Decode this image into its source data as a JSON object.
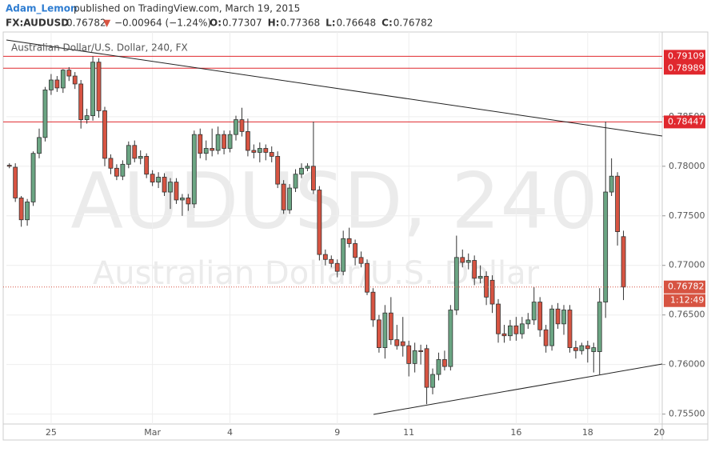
{
  "header": {
    "author": "Adam_Lemon",
    "published": "published on TradingView.com, March 19, 2015",
    "symbol": "FX:AUDUSD",
    "last": "0.76782",
    "arrow": "▼",
    "change": "−0.00964 (−1.24%)",
    "ohlc": [
      {
        "label": "O:",
        "value": "0.77307"
      },
      {
        "label": "H:",
        "value": "0.77368"
      },
      {
        "label": "L:",
        "value": "0.76648"
      },
      {
        "label": "C:",
        "value": "0.76782"
      }
    ]
  },
  "chart_data": {
    "type": "candlestick",
    "title": "Australian Dollar/U.S. Dollar, 240, FX",
    "watermark": [
      "AUDUSD, 240",
      "Australian Dollar/U.S. Dollar"
    ],
    "up_color": "#6ba583",
    "down_color": "#d75442",
    "grid": true,
    "categories": [
      null,
      null,
      null,
      null,
      null,
      null,
      null,
      "25",
      null,
      null,
      null,
      null,
      null,
      null,
      null,
      null,
      null,
      null,
      null,
      null,
      null,
      null,
      null,
      null,
      "Mar",
      null,
      null,
      null,
      null,
      null,
      null,
      null,
      null,
      null,
      null,
      null,
      null,
      "4",
      null,
      null,
      null,
      null,
      null,
      null,
      null,
      null,
      null,
      null,
      null,
      null,
      null,
      null,
      null,
      null,
      null,
      "9",
      null,
      null,
      null,
      null,
      null,
      null,
      null,
      null,
      null,
      null,
      null,
      "11",
      null,
      null,
      null,
      null,
      null,
      null,
      null,
      null,
      null,
      null,
      null,
      null,
      null,
      null,
      null,
      null,
      null,
      "16",
      null,
      null,
      null,
      null,
      null,
      null,
      null,
      null,
      null,
      null,
      null,
      "18",
      null,
      null,
      null,
      null,
      null,
      null,
      null,
      null,
      null,
      null,
      null,
      "20"
    ],
    "open": [
      0.7801,
      0.7799,
      0.7768,
      0.7746,
      0.7764,
      0.7813,
      0.7829,
      0.7877,
      0.7887,
      0.7879,
      0.7897,
      0.7891,
      0.7883,
      0.7847,
      0.7851,
      0.7905,
      0.7856,
      0.7808,
      0.7798,
      0.779,
      0.7802,
      0.7821,
      0.7808,
      0.781,
      0.7792,
      0.7784,
      0.7789,
      0.7774,
      0.7784,
      0.7766,
      0.7768,
      0.7762,
      0.7832,
      0.7813,
      0.7818,
      0.7816,
      0.7832,
      0.7818,
      0.7832,
      0.7847,
      0.7835,
      0.7816,
      0.7814,
      0.7818,
      0.7814,
      0.781,
      0.7782,
      0.7756,
      0.7778,
      0.7792,
      0.7798,
      0.78,
      0.7776,
      0.7711,
      0.7706,
      0.7702,
      0.7694,
      0.7727,
      0.7722,
      0.7708,
      0.7702,
      0.7673,
      0.7645,
      0.7617,
      0.7652,
      0.7625,
      0.7623,
      0.7619,
      0.7601,
      0.7614,
      0.7616,
      0.7577,
      0.759,
      0.7605,
      0.7598,
      0.7655,
      0.7708,
      0.7703,
      0.7705,
      0.7687,
      0.7689,
      0.7685,
      0.7661,
      0.7631,
      0.7629,
      0.7639,
      0.7631,
      0.7641,
      0.7645,
      0.7663,
      0.7635,
      0.7619,
      0.7656,
      0.7641,
      0.7655,
      0.7617,
      0.7614,
      0.7619,
      0.7613,
      0.7613,
      0.7663,
      0.7774,
      0.779,
      0.7729,
      null,
      null,
      null,
      null,
      null,
      null
    ],
    "high": [
      0.7803,
      0.7803,
      0.777,
      0.7767,
      0.7815,
      0.7838,
      0.788,
      0.7893,
      0.7891,
      0.7898,
      0.79,
      0.7895,
      0.7887,
      0.7858,
      0.7911,
      0.7909,
      0.786,
      0.7812,
      0.7802,
      0.7806,
      0.7825,
      0.7826,
      0.7816,
      0.7813,
      0.7796,
      0.7794,
      0.7793,
      0.7788,
      0.7788,
      0.7772,
      0.7772,
      0.7836,
      0.7838,
      0.7826,
      0.7838,
      0.784,
      0.7836,
      0.7836,
      0.7851,
      0.7859,
      0.7848,
      0.7822,
      0.7824,
      0.7822,
      0.782,
      0.7815,
      0.7786,
      0.7782,
      0.7797,
      0.7803,
      0.7803,
      0.7845,
      0.778,
      0.7716,
      0.771,
      0.7706,
      0.7735,
      0.7738,
      0.7726,
      0.7714,
      0.7706,
      0.7677,
      0.765,
      0.766,
      0.7668,
      0.764,
      0.7648,
      0.7624,
      0.7622,
      0.762,
      0.762,
      0.7596,
      0.7612,
      0.7614,
      0.766,
      0.773,
      0.7716,
      0.7712,
      0.771,
      0.77,
      0.7694,
      0.769,
      0.7666,
      0.764,
      0.7645,
      0.7648,
      0.7648,
      0.7652,
      0.7678,
      0.7668,
      0.764,
      0.766,
      0.7662,
      0.766,
      0.766,
      0.7624,
      0.7622,
      0.7624,
      0.7622,
      0.7677,
      0.7845,
      0.7808,
      0.7794,
      0.7735,
      null,
      null,
      null,
      null,
      null,
      null
    ],
    "low": [
      0.7798,
      0.7764,
      0.7739,
      0.774,
      0.776,
      0.7808,
      0.7825,
      0.7872,
      0.7875,
      0.7874,
      0.7886,
      0.7878,
      0.7838,
      0.7843,
      0.7846,
      0.7849,
      0.78,
      0.7792,
      0.7786,
      0.7786,
      0.7798,
      0.7804,
      0.7802,
      0.7788,
      0.778,
      0.7778,
      0.777,
      0.7757,
      0.7762,
      0.775,
      0.7755,
      0.7758,
      0.7808,
      0.7806,
      0.781,
      0.7812,
      0.7812,
      0.7814,
      0.7826,
      0.783,
      0.781,
      0.7808,
      0.7804,
      0.7806,
      0.7804,
      0.7778,
      0.7752,
      0.7752,
      0.7774,
      0.7788,
      0.7795,
      0.7772,
      0.7705,
      0.77,
      0.7698,
      0.7688,
      0.769,
      0.7718,
      0.77,
      0.7698,
      0.767,
      0.7638,
      0.7612,
      0.7606,
      0.762,
      0.7615,
      0.7608,
      0.7588,
      0.7592,
      0.76,
      0.756,
      0.757,
      0.7584,
      0.7594,
      0.7594,
      0.765,
      0.7698,
      0.7696,
      0.768,
      0.7682,
      0.766,
      0.7652,
      0.7622,
      0.7622,
      0.7624,
      0.7624,
      0.7626,
      0.7636,
      0.764,
      0.7628,
      0.7612,
      0.7614,
      0.7636,
      0.763,
      0.7612,
      0.7606,
      0.761,
      0.7602,
      0.7592,
      0.759,
      0.7647,
      0.777,
      0.772,
      0.7665,
      null,
      null,
      null,
      null,
      null,
      null
    ],
    "close": [
      0.78,
      0.7768,
      0.7746,
      0.7764,
      0.7813,
      0.7829,
      0.7877,
      0.7887,
      0.7879,
      0.7897,
      0.7891,
      0.7883,
      0.7847,
      0.7851,
      0.7905,
      0.7856,
      0.7808,
      0.7798,
      0.779,
      0.7802,
      0.7821,
      0.7808,
      0.781,
      0.7792,
      0.7784,
      0.7789,
      0.7774,
      0.7784,
      0.7766,
      0.7768,
      0.7762,
      0.7832,
      0.7813,
      0.7818,
      0.7816,
      0.7832,
      0.7818,
      0.7832,
      0.7847,
      0.7835,
      0.7816,
      0.7814,
      0.7818,
      0.7814,
      0.781,
      0.7782,
      0.7756,
      0.7778,
      0.7792,
      0.7798,
      0.78,
      0.7776,
      0.7711,
      0.7706,
      0.7702,
      0.7694,
      0.7727,
      0.7722,
      0.7708,
      0.7702,
      0.7673,
      0.7645,
      0.7617,
      0.7652,
      0.7625,
      0.7619,
      0.7619,
      0.7601,
      0.7614,
      0.7613,
      0.7577,
      0.759,
      0.7605,
      0.7598,
      0.7655,
      0.7708,
      0.7703,
      0.7705,
      0.7687,
      0.7689,
      0.7668,
      0.7661,
      0.7631,
      0.7629,
      0.7639,
      0.7631,
      0.7641,
      0.7645,
      0.7663,
      0.7635,
      0.7619,
      0.7656,
      0.7641,
      0.7655,
      0.7617,
      0.7614,
      0.7619,
      0.7616,
      0.7617,
      0.7663,
      0.7774,
      0.779,
      0.7734,
      0.76782,
      null,
      null,
      null,
      null,
      null,
      null
    ],
    "ylim": [
      0.754,
      0.7933
    ],
    "yticks": [
      {
        "value": 0.755,
        "label": "0.75500"
      },
      {
        "value": 0.76,
        "label": "0.76000"
      },
      {
        "value": 0.765,
        "label": "0.76500"
      },
      {
        "value": 0.77,
        "label": "0.77000"
      },
      {
        "value": 0.775,
        "label": "0.77500"
      },
      {
        "value": 0.78,
        "label": "0.78000"
      },
      {
        "value": 0.785,
        "label": "0.78500"
      }
    ],
    "levels": [
      {
        "value": 0.79109,
        "label": "0.79109"
      },
      {
        "value": 0.78989,
        "label": "0.78989"
      },
      {
        "value": 0.78447,
        "label": "0.78447"
      }
    ],
    "level_color": "#e0282e",
    "last_price": {
      "value": 0.76782,
      "label": "0.76782",
      "countdown": "1:12:49"
    }
  }
}
